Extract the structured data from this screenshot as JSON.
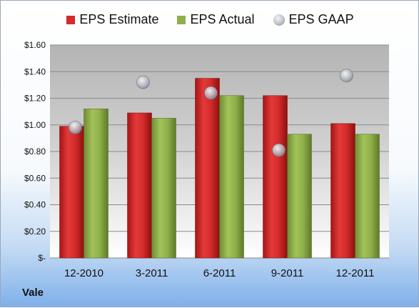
{
  "company_label": "Vale",
  "colors": {
    "estimate": "#d42a2a",
    "actual": "#8fb04a",
    "gaap": "#b8bcc4"
  },
  "chart_data": {
    "type": "bar",
    "categories": [
      "12-2010",
      "3-2011",
      "6-2011",
      "9-2011",
      "12-2011"
    ],
    "series": [
      {
        "name": "EPS Estimate",
        "type": "bar",
        "values": [
          0.99,
          1.09,
          1.35,
          1.22,
          1.01
        ]
      },
      {
        "name": "EPS Actual",
        "type": "bar",
        "values": [
          1.12,
          1.05,
          1.22,
          0.93,
          0.93
        ]
      },
      {
        "name": "EPS GAAP",
        "type": "scatter",
        "values": [
          0.98,
          1.32,
          1.24,
          0.81,
          1.37
        ]
      }
    ],
    "ylim": [
      0,
      1.6
    ],
    "yticks": [
      0,
      0.2,
      0.4,
      0.6,
      0.8,
      1.0,
      1.2,
      1.4,
      1.6
    ],
    "ytick_labels": [
      "$-",
      "$0.20",
      "$0.40",
      "$0.60",
      "$0.80",
      "$1.00",
      "$1.20",
      "$1.40",
      "$1.60"
    ],
    "grid": true,
    "legend_position": "top"
  }
}
